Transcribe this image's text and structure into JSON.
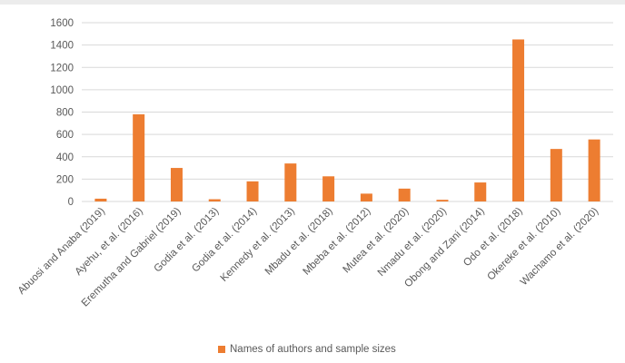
{
  "chart_data": {
    "type": "bar",
    "categories": [
      "Abuosi and Anaba (2019)",
      "Ayehu, et al. (2016)",
      "Eremutha and Gabriel (2019)",
      "Godia et al. (2013)",
      "Godia et al. (2014)",
      "Kennedy et al. (2013)",
      "Mbadu et al. (2018)",
      "Mbeba et al. (2012)",
      "Mutea et al. (2020)",
      "Nmadu et al. (2020)",
      "Obong and Zani (2014)",
      "Odo et al. (2018)",
      "Okereke et al. (2010)",
      "Wachamo et al. (2020)"
    ],
    "series": [
      {
        "name": "Names of authors and sample sizes",
        "values": [
          25,
          780,
          300,
          20,
          180,
          340,
          225,
          70,
          115,
          15,
          170,
          1450,
          470,
          555
        ]
      }
    ],
    "ylim": [
      0,
      1600
    ],
    "yticks": [
      0,
      200,
      400,
      600,
      800,
      1000,
      1200,
      1400,
      1600
    ],
    "grid": true,
    "legend_position": "bottom",
    "colors": {
      "bar": "#ED7D31",
      "grid": "#d9d9d9",
      "text": "#595959"
    }
  }
}
